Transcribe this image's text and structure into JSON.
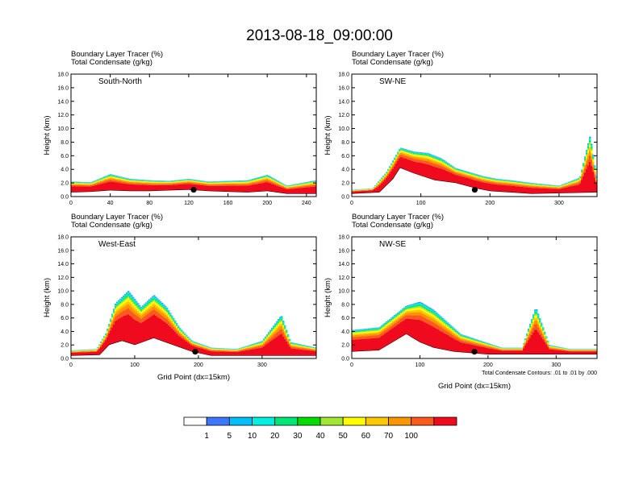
{
  "title": "2013-08-18_09:00:00",
  "colors": {
    "bins": [
      "#ffffff",
      "#3c78ff",
      "#00bfff",
      "#00f0e0",
      "#00e676",
      "#00dc00",
      "#a0e632",
      "#ffff00",
      "#ffc800",
      "#ff9600",
      "#ff5a1e",
      "#f00a1e"
    ],
    "outline": "#000000"
  },
  "colorbar": {
    "labels": [
      "1",
      "5",
      "10",
      "20",
      "30",
      "40",
      "50",
      "60",
      "70",
      "100"
    ]
  },
  "chart_data": [
    {
      "type": "heatmap",
      "panel_label": "South-North",
      "header_line1": "Boundary Layer Tracer   (%)",
      "header_line2": "Total Condensate   (g/kg)",
      "ylabel": "Height (km)",
      "xlabel": "",
      "ylim": [
        0,
        18
      ],
      "xlim": [
        0,
        250
      ],
      "xticks": [
        "0",
        "40",
        "80",
        "120",
        "160",
        "200",
        "240"
      ],
      "xtick_values": [
        0,
        40,
        80,
        120,
        160,
        200,
        240
      ],
      "yticks": [
        "0.0",
        "2.0",
        "4.0",
        "6.0",
        "8.0",
        "10.0",
        "12.0",
        "14.0",
        "16.0",
        "18.0"
      ],
      "tracer_top_km": [
        [
          0,
          2.2
        ],
        [
          20,
          2.1
        ],
        [
          40,
          3.3
        ],
        [
          60,
          2.6
        ],
        [
          80,
          2.4
        ],
        [
          100,
          2.3
        ],
        [
          120,
          2.6
        ],
        [
          140,
          2.2
        ],
        [
          160,
          2.3
        ],
        [
          180,
          2.4
        ],
        [
          200,
          3.2
        ],
        [
          220,
          1.6
        ],
        [
          235,
          2.0
        ],
        [
          250,
          2.4
        ]
      ],
      "terrain_km": [
        [
          0,
          0.6
        ],
        [
          20,
          0.7
        ],
        [
          40,
          0.9
        ],
        [
          60,
          0.8
        ],
        [
          80,
          0.8
        ],
        [
          100,
          0.9
        ],
        [
          120,
          1.0
        ],
        [
          140,
          0.8
        ],
        [
          160,
          0.7
        ],
        [
          180,
          0.6
        ],
        [
          200,
          0.8
        ],
        [
          220,
          0.4
        ],
        [
          250,
          0.4
        ]
      ],
      "location_marker": {
        "x": 125,
        "y_km": 1.0
      }
    },
    {
      "type": "heatmap",
      "panel_label": "SW-NE",
      "header_line1": "Boundary Layer Tracer   (%)",
      "header_line2": "Total Condensate   (g/kg)",
      "ylabel": "Height (km)",
      "xlabel": "",
      "ylim": [
        0,
        18
      ],
      "xlim": [
        0,
        355
      ],
      "xticks": [
        "0",
        "100",
        "200",
        "300"
      ],
      "xtick_values": [
        0,
        100,
        200,
        300
      ],
      "yticks": [
        "0.0",
        "2.0",
        "4.0",
        "6.0",
        "8.0",
        "10.0",
        "12.0",
        "14.0",
        "16.0",
        "18.0"
      ],
      "tracer_top_km": [
        [
          0,
          1.0
        ],
        [
          30,
          1.2
        ],
        [
          50,
          3.6
        ],
        [
          70,
          7.2
        ],
        [
          90,
          6.6
        ],
        [
          110,
          6.4
        ],
        [
          130,
          5.6
        ],
        [
          150,
          4.2
        ],
        [
          170,
          3.6
        ],
        [
          190,
          3.0
        ],
        [
          210,
          2.6
        ],
        [
          230,
          2.4
        ],
        [
          260,
          2.0
        ],
        [
          300,
          1.6
        ],
        [
          330,
          2.8
        ],
        [
          345,
          9.0
        ],
        [
          355,
          2.2
        ]
      ],
      "terrain_km": [
        [
          0,
          0.4
        ],
        [
          40,
          0.6
        ],
        [
          60,
          2.6
        ],
        [
          70,
          4.2
        ],
        [
          90,
          3.4
        ],
        [
          120,
          2.4
        ],
        [
          150,
          2.0
        ],
        [
          180,
          1.2
        ],
        [
          200,
          0.8
        ],
        [
          260,
          0.4
        ],
        [
          355,
          0.6
        ]
      ],
      "location_marker": {
        "x": 178,
        "y_km": 1.0
      }
    },
    {
      "type": "heatmap",
      "panel_label": "West-East",
      "header_line1": "Boundary Layer Tracer   (%)",
      "header_line2": "Total Condensate   (g/kg)",
      "ylabel": "Height (km)",
      "xlabel": "Grid Point (dx=15km)",
      "ylim": [
        0,
        18
      ],
      "xlim": [
        0,
        385
      ],
      "xticks": [
        "0",
        "100",
        "200",
        "300"
      ],
      "xtick_values": [
        0,
        100,
        200,
        300
      ],
      "yticks": [
        "0.0",
        "2.0",
        "4.0",
        "6.0",
        "8.0",
        "10.0",
        "12.0",
        "14.0",
        "16.0",
        "18.0"
      ],
      "tracer_top_km": [
        [
          0,
          1.2
        ],
        [
          40,
          1.4
        ],
        [
          55,
          3.8
        ],
        [
          70,
          8.2
        ],
        [
          90,
          10.0
        ],
        [
          110,
          7.6
        ],
        [
          130,
          9.4
        ],
        [
          150,
          7.6
        ],
        [
          170,
          4.6
        ],
        [
          190,
          2.6
        ],
        [
          220,
          1.6
        ],
        [
          260,
          1.4
        ],
        [
          300,
          2.6
        ],
        [
          330,
          6.4
        ],
        [
          345,
          2.4
        ],
        [
          385,
          1.6
        ]
      ],
      "terrain_km": [
        [
          0,
          0.4
        ],
        [
          45,
          0.5
        ],
        [
          60,
          2.0
        ],
        [
          80,
          2.6
        ],
        [
          100,
          2.0
        ],
        [
          130,
          3.0
        ],
        [
          160,
          2.0
        ],
        [
          190,
          1.0
        ],
        [
          220,
          0.4
        ],
        [
          385,
          0.4
        ]
      ],
      "location_marker": {
        "x": 195,
        "y_km": 1.0
      }
    },
    {
      "type": "heatmap",
      "panel_label": "NW-SE",
      "header_line1": "Boundary Layer Tracer   (%)",
      "header_line2": "Total Condensate   (g/kg)",
      "ylabel": "Height (km)",
      "xlabel": "Grid Point (dx=15km)",
      "note": "Total Condensate Contours: .01 to .01 by .000",
      "ylim": [
        0,
        18
      ],
      "xlim": [
        0,
        360
      ],
      "xticks": [
        "0",
        "100",
        "200",
        "300"
      ],
      "xtick_values": [
        0,
        100,
        200,
        300
      ],
      "yticks": [
        "0.0",
        "2.0",
        "4.0",
        "6.0",
        "8.0",
        "10.0",
        "12.0",
        "14.0",
        "16.0",
        "18.0"
      ],
      "tracer_top_km": [
        [
          0,
          4.2
        ],
        [
          40,
          4.6
        ],
        [
          60,
          6.2
        ],
        [
          80,
          7.8
        ],
        [
          100,
          8.4
        ],
        [
          120,
          7.2
        ],
        [
          140,
          5.4
        ],
        [
          160,
          3.6
        ],
        [
          190,
          2.6
        ],
        [
          220,
          1.6
        ],
        [
          250,
          1.6
        ],
        [
          270,
          7.6
        ],
        [
          290,
          2.0
        ],
        [
          320,
          1.4
        ],
        [
          360,
          1.4
        ]
      ],
      "terrain_km": [
        [
          0,
          1.0
        ],
        [
          40,
          1.2
        ],
        [
          80,
          3.6
        ],
        [
          100,
          2.4
        ],
        [
          120,
          1.6
        ],
        [
          150,
          1.0
        ],
        [
          200,
          0.6
        ],
        [
          360,
          0.6
        ]
      ],
      "location_marker": {
        "x": 180,
        "y_km": 1.0
      }
    }
  ]
}
